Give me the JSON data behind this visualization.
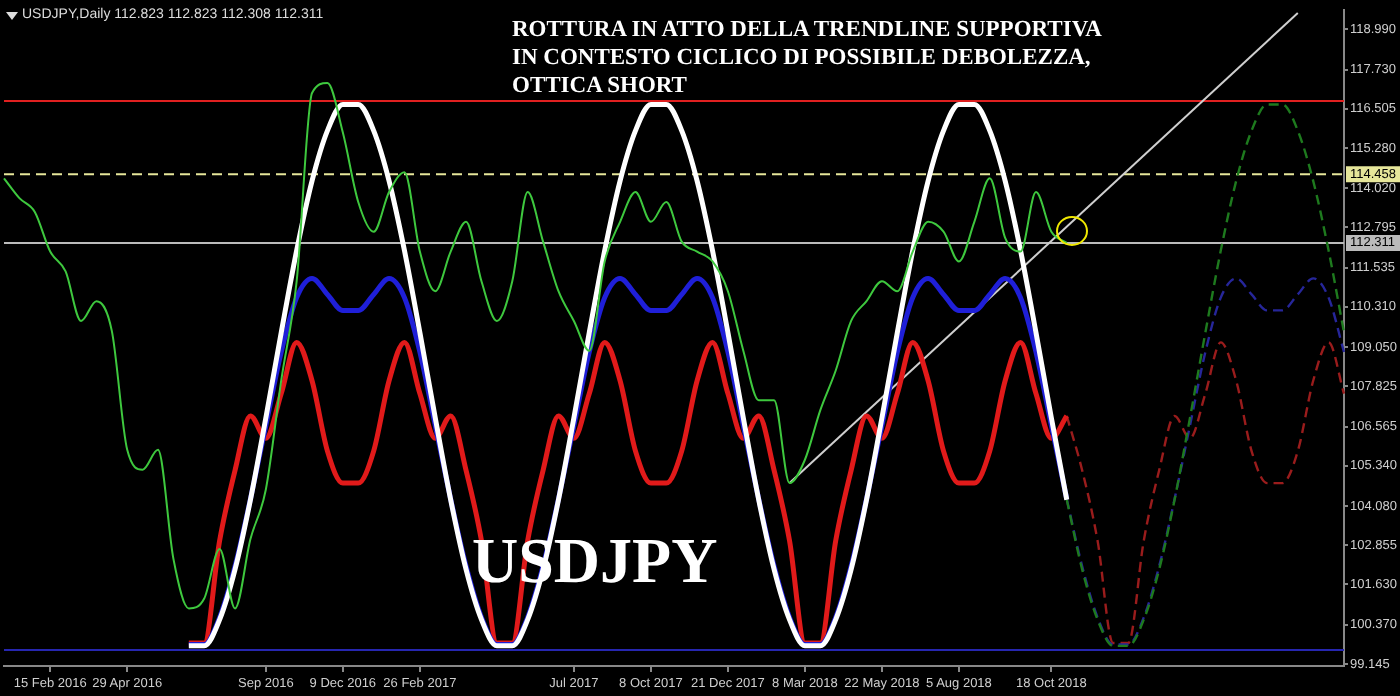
{
  "chart_data": {
    "type": "line",
    "title": "ROTTURA IN ATTO DELLA TRENDLINE SUPPORTIVA\nIN CONTESTO CICLICO DI POSSIBILE DEBOLEZZA,\nOTTICA SHORT",
    "annotations": [
      "USDJPY,Daily 112.823 112.823 112.308 112.311",
      "USDJPY"
    ],
    "marker": "none",
    "categories": [
      null,
      null,
      null,
      "15 Feb 2016",
      null,
      null,
      null,
      null,
      "29 Apr 2016",
      null,
      null,
      null,
      null,
      null,
      null,
      null,
      null,
      "Sep 2016",
      null,
      null,
      null,
      null,
      "9 Dec 2016",
      null,
      null,
      null,
      null,
      "26 Feb 2017",
      null,
      null,
      null,
      null,
      null,
      null,
      null,
      null,
      null,
      "Jul 2017",
      null,
      null,
      null,
      null,
      "8 Oct 2017",
      null,
      null,
      null,
      null,
      "21 Dec 2017",
      null,
      null,
      null,
      null,
      "8 Mar 2018",
      null,
      null,
      null,
      null,
      "22 May 2018",
      null,
      null,
      null,
      null,
      "5 Aug 2018",
      null,
      null,
      null,
      null,
      null,
      "18 Oct 2018",
      null,
      null,
      null,
      null,
      null,
      null,
      null,
      null,
      null,
      null,
      null,
      null,
      null,
      null,
      null,
      null,
      null,
      null,
      null
    ],
    "ylim": [
      99.08,
      119.6
    ],
    "yticks": [
      {
        "value": 118.99,
        "label": "118.990"
      },
      {
        "value": 117.73,
        "label": "117.730"
      },
      {
        "value": 116.505,
        "label": "116.505"
      },
      {
        "value": 115.28,
        "label": "115.280"
      },
      {
        "value": 114.02,
        "label": "114.020"
      },
      {
        "value": 112.795,
        "label": "112.795"
      },
      {
        "value": 111.535,
        "label": "111.535"
      },
      {
        "value": 110.31,
        "label": "110.310"
      },
      {
        "value": 109.05,
        "label": "109.050"
      },
      {
        "value": 107.825,
        "label": "107.825"
      },
      {
        "value": 106.565,
        "label": "106.565"
      },
      {
        "value": 105.34,
        "label": "105.340"
      },
      {
        "value": 104.08,
        "label": "104.080"
      },
      {
        "value": 102.855,
        "label": "102.855"
      },
      {
        "value": 101.63,
        "label": "101.630"
      },
      {
        "value": 100.37,
        "label": "100.370"
      },
      {
        "value": 99.145,
        "label": "99.145"
      }
    ],
    "ref_lines": [
      {
        "axis": "y",
        "value": 116.75,
        "color": "#e02020"
      },
      {
        "axis": "y",
        "value": 114.458,
        "label": "114.458",
        "color": "#e6e69a",
        "line_style": "dashed"
      },
      {
        "axis": "y",
        "value": 112.311,
        "label": "112.311",
        "color": "#bbbbbb"
      },
      {
        "axis": "y",
        "value": 99.58,
        "color": "#2626b0"
      }
    ],
    "series": [
      {
        "color": "#3ec83e",
        "values": [
          114.33,
          113.71,
          113.28,
          112.04,
          111.42,
          109.87,
          110.49,
          109.56,
          105.84,
          105.22,
          105.84,
          102.43,
          100.88,
          101.19,
          102.74,
          100.88,
          103.05,
          104.6,
          108.01,
          111.11,
          117,
          117.31,
          115.76,
          113.59,
          112.66,
          113.9,
          114.52,
          112.04,
          110.8,
          112.04,
          112.97,
          111.11,
          109.87,
          111.11,
          113.9,
          112.35,
          110.8,
          109.87,
          108.94,
          111.73,
          112.97,
          113.9,
          112.97,
          113.59,
          112.35,
          112.04,
          111.73,
          110.8,
          108.94,
          107.39,
          107.39,
          104.8,
          105.53,
          107.08,
          108.32,
          109.87,
          110.49,
          111.11,
          110.8,
          112.04,
          112.97,
          112.66,
          111.73,
          112.97,
          114.33,
          112.47,
          112.04,
          113.9,
          112.66,
          112.31,
          null,
          null,
          null,
          null,
          null,
          null,
          null,
          null,
          null,
          null,
          null,
          null,
          null,
          null,
          null,
          null,
          null,
          null
        ]
      },
      {
        "color": "#ffffff",
        "values": [
          null,
          null,
          null,
          null,
          null,
          null,
          null,
          null,
          null,
          null,
          null,
          null,
          99.71,
          99.71,
          100.53,
          102.1,
          104.28,
          106.84,
          109.51,
          112.07,
          114.25,
          115.82,
          116.64,
          116.64,
          115.82,
          114.25,
          112.07,
          109.51,
          106.84,
          104.28,
          102.1,
          100.53,
          99.71,
          99.71,
          100.53,
          102.1,
          104.28,
          106.84,
          109.51,
          112.07,
          114.25,
          115.82,
          116.64,
          116.64,
          115.82,
          114.25,
          112.07,
          109.51,
          106.84,
          104.28,
          102.1,
          100.53,
          99.71,
          99.71,
          100.53,
          102.1,
          104.28,
          106.84,
          109.51,
          112.07,
          114.25,
          115.82,
          116.64,
          116.64,
          115.82,
          114.25,
          112.07,
          109.51,
          106.84,
          104.28,
          null,
          null,
          null,
          null,
          null,
          null,
          null,
          null,
          null,
          null,
          null,
          null,
          null,
          null,
          null,
          null,
          null,
          null
        ]
      },
      {
        "color": "#1f1fd8",
        "values": [
          null,
          null,
          null,
          null,
          null,
          null,
          null,
          null,
          null,
          null,
          null,
          null,
          99.75,
          99.75,
          100.6,
          102.2,
          104.3,
          106.6,
          108.9,
          110.6,
          111.2,
          110.7,
          110.2,
          110.2,
          110.7,
          111.2,
          110.6,
          108.9,
          106.6,
          104.3,
          102.2,
          100.6,
          99.75,
          99.75,
          100.6,
          102.2,
          104.3,
          106.6,
          108.9,
          110.6,
          111.2,
          110.7,
          110.2,
          110.2,
          110.7,
          111.2,
          110.6,
          108.9,
          106.6,
          104.3,
          102.2,
          100.6,
          99.75,
          99.75,
          100.6,
          102.2,
          104.3,
          106.6,
          108.9,
          110.6,
          111.2,
          110.7,
          110.2,
          110.2,
          110.7,
          111.2,
          110.6,
          108.9,
          106.6,
          104.3,
          null,
          null,
          null,
          null,
          null,
          null,
          null,
          null,
          null,
          null,
          null,
          null,
          null,
          null,
          null,
          null,
          null,
          null
        ]
      },
      {
        "color": "#e11a1a",
        "values": [
          null,
          null,
          null,
          null,
          null,
          null,
          null,
          null,
          null,
          null,
          null,
          null,
          99.8,
          99.8,
          103,
          105.2,
          106.9,
          106.2,
          107.6,
          109.2,
          108,
          105.8,
          104.8,
          104.8,
          105.8,
          108,
          109.2,
          107.6,
          106.2,
          106.9,
          105.2,
          103,
          99.8,
          99.8,
          103,
          105.2,
          106.9,
          106.2,
          107.6,
          109.2,
          108,
          105.8,
          104.8,
          104.8,
          105.8,
          108,
          109.2,
          107.6,
          106.2,
          106.9,
          105.2,
          103,
          99.8,
          99.8,
          103,
          105.2,
          106.9,
          106.2,
          107.6,
          109.2,
          108,
          105.8,
          104.8,
          104.8,
          105.8,
          108,
          109.2,
          107.6,
          106.2,
          106.9,
          null,
          null,
          null,
          null,
          null,
          null,
          null,
          null,
          null,
          null,
          null,
          null,
          null,
          null,
          null,
          null,
          null,
          null
        ]
      },
      {
        "color": "#1e7a1e",
        "line_style": "dashed",
        "values": [
          null,
          null,
          null,
          null,
          null,
          null,
          null,
          null,
          null,
          null,
          null,
          null,
          null,
          null,
          null,
          null,
          null,
          null,
          null,
          null,
          null,
          null,
          null,
          null,
          null,
          null,
          null,
          null,
          null,
          null,
          null,
          null,
          null,
          null,
          null,
          null,
          null,
          null,
          null,
          null,
          null,
          null,
          null,
          null,
          null,
          null,
          null,
          null,
          null,
          null,
          null,
          null,
          null,
          null,
          null,
          null,
          null,
          null,
          null,
          null,
          null,
          null,
          null,
          null,
          null,
          null,
          null,
          null,
          null,
          104.28,
          102.1,
          100.53,
          99.71,
          99.71,
          100.53,
          102.1,
          104.28,
          106.84,
          109.51,
          112.07,
          114.25,
          115.82,
          116.64,
          116.64,
          115.82,
          114.25,
          112.07,
          109.51
        ]
      },
      {
        "color": "#26269a",
        "line_style": "dashed",
        "values": [
          null,
          null,
          null,
          null,
          null,
          null,
          null,
          null,
          null,
          null,
          null,
          null,
          null,
          null,
          null,
          null,
          null,
          null,
          null,
          null,
          null,
          null,
          null,
          null,
          null,
          null,
          null,
          null,
          null,
          null,
          null,
          null,
          null,
          null,
          null,
          null,
          null,
          null,
          null,
          null,
          null,
          null,
          null,
          null,
          null,
          null,
          null,
          null,
          null,
          null,
          null,
          null,
          null,
          null,
          null,
          null,
          null,
          null,
          null,
          null,
          null,
          null,
          null,
          null,
          null,
          null,
          null,
          null,
          null,
          104.3,
          102.2,
          100.6,
          99.75,
          99.75,
          100.6,
          102.2,
          104.3,
          106.6,
          108.9,
          110.6,
          111.2,
          110.7,
          110.2,
          110.2,
          110.7,
          111.2,
          110.6,
          108.9
        ]
      },
      {
        "color": "#9a1c1c",
        "line_style": "dashed",
        "values": [
          null,
          null,
          null,
          null,
          null,
          null,
          null,
          null,
          null,
          null,
          null,
          null,
          null,
          null,
          null,
          null,
          null,
          null,
          null,
          null,
          null,
          null,
          null,
          null,
          null,
          null,
          null,
          null,
          null,
          null,
          null,
          null,
          null,
          null,
          null,
          null,
          null,
          null,
          null,
          null,
          null,
          null,
          null,
          null,
          null,
          null,
          null,
          null,
          null,
          null,
          null,
          null,
          null,
          null,
          null,
          null,
          null,
          null,
          null,
          null,
          null,
          null,
          null,
          null,
          null,
          null,
          null,
          null,
          null,
          106.9,
          105.2,
          103,
          99.8,
          99.8,
          103,
          105.2,
          106.9,
          106.2,
          107.6,
          109.2,
          108,
          105.8,
          104.8,
          104.8,
          105.8,
          108,
          109.2,
          107.6
        ]
      },
      {
        "color": "#cfcfcf",
        "values": [
          null,
          null,
          null,
          null,
          null,
          null,
          null,
          null,
          null,
          null,
          null,
          null,
          null,
          null,
          null,
          null,
          null,
          null,
          null,
          null,
          null,
          null,
          null,
          null,
          null,
          null,
          null,
          null,
          null,
          null,
          null,
          null,
          null,
          null,
          null,
          null,
          null,
          null,
          null,
          null,
          null,
          null,
          null,
          null,
          null,
          null,
          null,
          null,
          null,
          null,
          null,
          104.8,
          null,
          null,
          null,
          null,
          null,
          null,
          null,
          null,
          null,
          null,
          null,
          null,
          null,
          null,
          null,
          null,
          null,
          null,
          null,
          null,
          null,
          null,
          null,
          null,
          null,
          null,
          null,
          null,
          null,
          null,
          null,
          null,
          119.5,
          null,
          null,
          null
        ]
      }
    ]
  }
}
